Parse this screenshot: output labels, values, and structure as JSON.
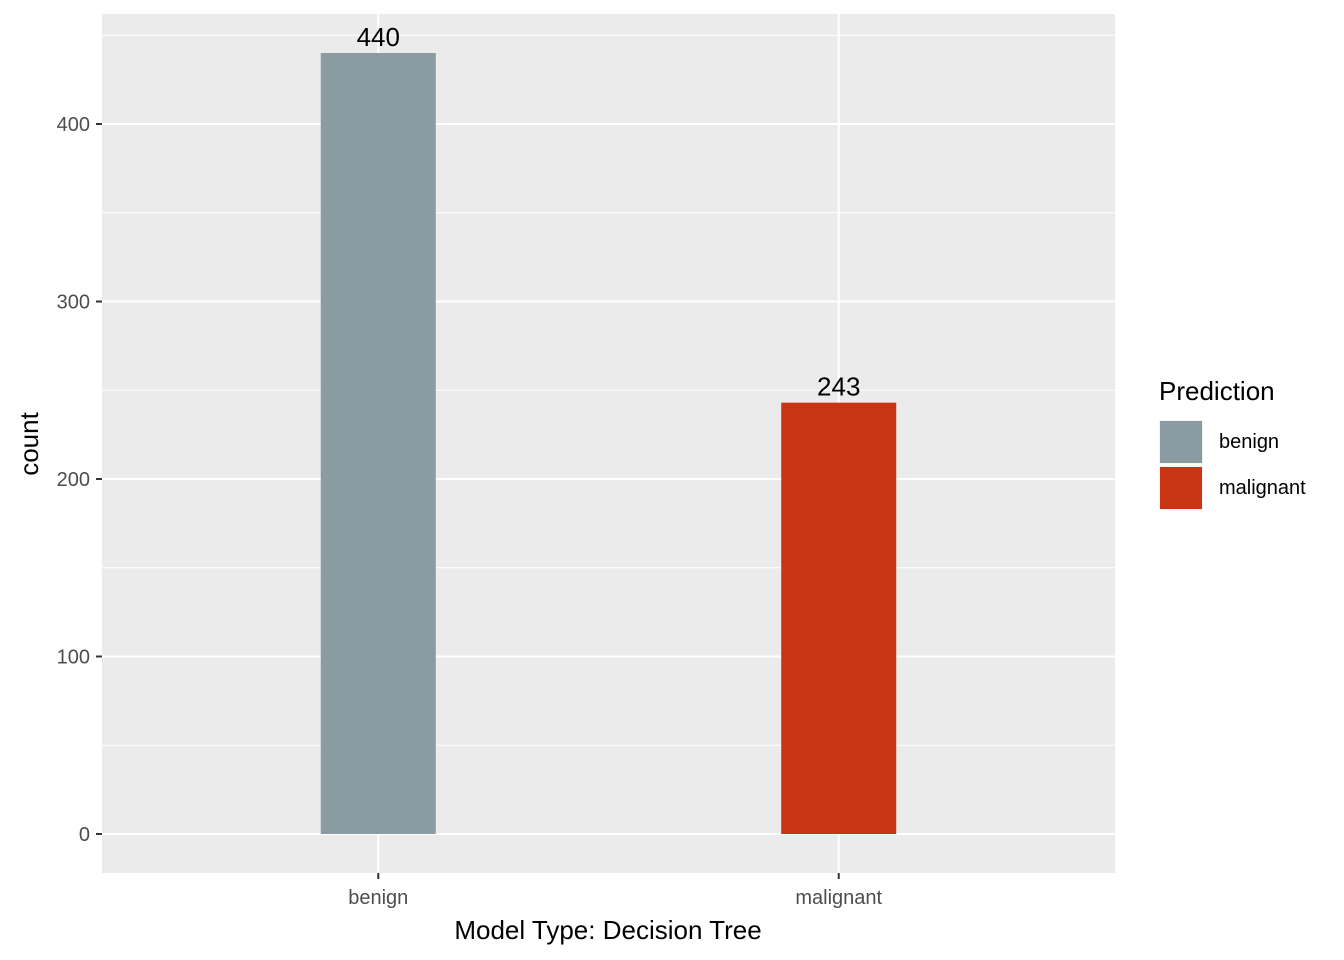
{
  "chart_data": {
    "type": "bar",
    "categories": [
      "benign",
      "malignant"
    ],
    "values": [
      440,
      243
    ],
    "data_labels": [
      "440",
      "243"
    ],
    "colors": [
      "#8a9ba2",
      "#c83414"
    ],
    "xlabel": "Model Type:  Decision Tree",
    "ylabel": "count",
    "ylim": [
      -22,
      460
    ],
    "yticks": [
      0,
      100,
      200,
      300,
      400
    ],
    "ytick_labels": [
      "0",
      "100",
      "200",
      "300",
      "400"
    ],
    "grid": true,
    "panel_background": "#ebebeb",
    "legend": {
      "title": "Prediction",
      "position": "right",
      "entries": [
        "benign",
        "malignant"
      ]
    }
  }
}
